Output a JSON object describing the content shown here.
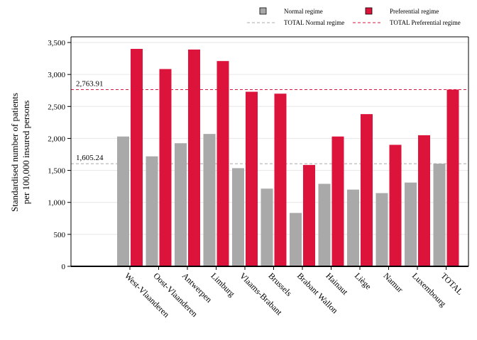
{
  "chart_data": {
    "type": "bar",
    "title": "",
    "xlabel": "",
    "ylabel": [
      "Standardised number of patients",
      "per 100,000 insured persons"
    ],
    "ylim": [
      0,
      3500
    ],
    "yticks": [
      0,
      500,
      1000,
      1500,
      2000,
      2500,
      3000,
      3500
    ],
    "ytick_labels": [
      "0",
      "500",
      "1,000",
      "1,500",
      "2,000",
      "2,500",
      "3,000",
      "3,500"
    ],
    "grid": true,
    "legend_position": "top-right",
    "categories": [
      "West-Vlaanderen",
      "Oost-Vlaanderen",
      "Antwerpen",
      "Limburg",
      "Vlaams-Brabant",
      "Brussels",
      "Brabant Wallon",
      "Hainaut",
      "Liège",
      "Namur",
      "Luxembourg",
      "TOTAL"
    ],
    "series": [
      {
        "name": "Normal regime",
        "color": "#a9a9a9",
        "values": [
          2030,
          1720,
          1925,
          2070,
          1535,
          1215,
          835,
          1290,
          1200,
          1145,
          1310,
          1605.24
        ]
      },
      {
        "name": "Preferential regime",
        "color": "#dc143c",
        "values": [
          3400,
          3085,
          3390,
          3210,
          2730,
          2700,
          1585,
          2030,
          2380,
          1900,
          2050,
          2763.91
        ]
      }
    ],
    "reference_lines": [
      {
        "name": "TOTAL Normal regime",
        "value": 1605.24,
        "label": "1,605.24",
        "color": "#a9a9a9",
        "style": "dashed"
      },
      {
        "name": "TOTAL Preferential regime",
        "value": 2763.91,
        "label": "2,763.91",
        "color": "#dc143c",
        "style": "dashed"
      }
    ]
  }
}
